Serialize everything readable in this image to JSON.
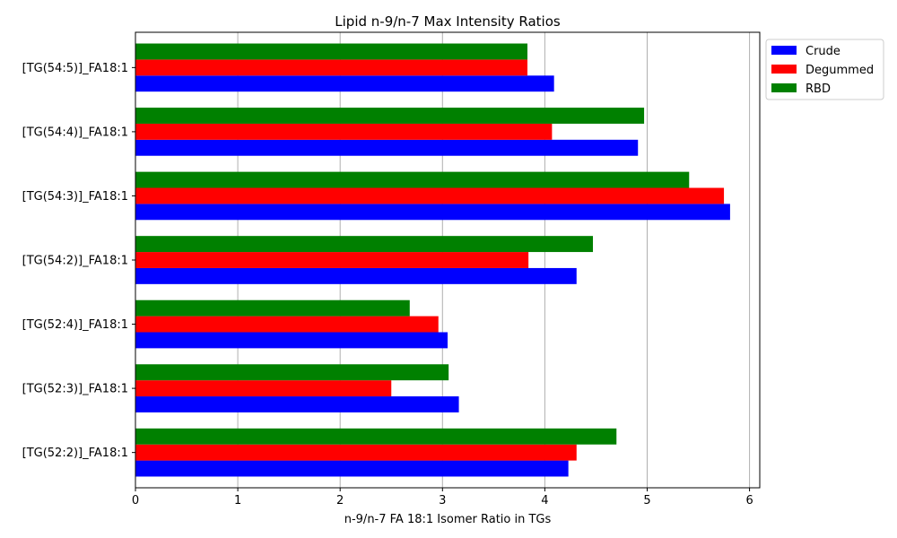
{
  "chart_data": {
    "type": "bar",
    "orientation": "horizontal",
    "title": "Lipid n-9/n-7 Max Intensity Ratios",
    "xlabel": "n-9/n-7 FA 18:1 Isomer Ratio in TGs",
    "ylabel": "",
    "xlim": [
      0,
      6.1
    ],
    "xticks": [
      "0",
      "1",
      "2",
      "3",
      "4",
      "5",
      "6"
    ],
    "grid": "x",
    "legend_position": "outside-top-right",
    "categories": [
      "[TG(52:2)]_FA18:1",
      "[TG(52:3)]_FA18:1",
      "[TG(52:4)]_FA18:1",
      "[TG(54:2)]_FA18:1",
      "[TG(54:3)]_FA18:1",
      "[TG(54:4)]_FA18:1",
      "[TG(54:5)]_FA18:1"
    ],
    "series": [
      {
        "name": "Crude",
        "color": "#0000ff",
        "values": [
          4.23,
          3.16,
          3.05,
          4.31,
          5.81,
          4.91,
          4.09
        ]
      },
      {
        "name": "Degummed",
        "color": "#ff0000",
        "values": [
          4.31,
          2.5,
          2.96,
          3.84,
          5.75,
          4.07,
          3.83
        ]
      },
      {
        "name": "RBD",
        "color": "#008000",
        "values": [
          4.7,
          3.06,
          2.68,
          4.47,
          5.41,
          4.97,
          3.83
        ]
      }
    ]
  }
}
